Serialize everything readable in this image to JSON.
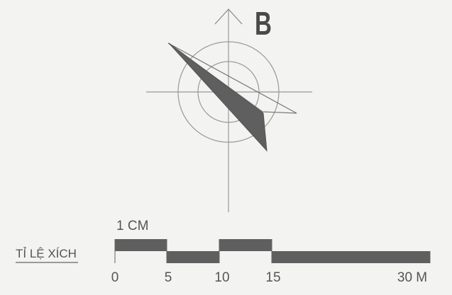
{
  "compass": {
    "north_label": "B"
  },
  "scale_bar": {
    "label": "TỈ LỆ XÍCH",
    "unit_note": "1 CM",
    "ticks": [
      "0",
      "5",
      "10",
      "15",
      "30 M"
    ]
  },
  "colors": {
    "ink": "#555555",
    "fill_dark": "#5f5f5f",
    "line": "#888888",
    "background": "#f3f3f1"
  }
}
